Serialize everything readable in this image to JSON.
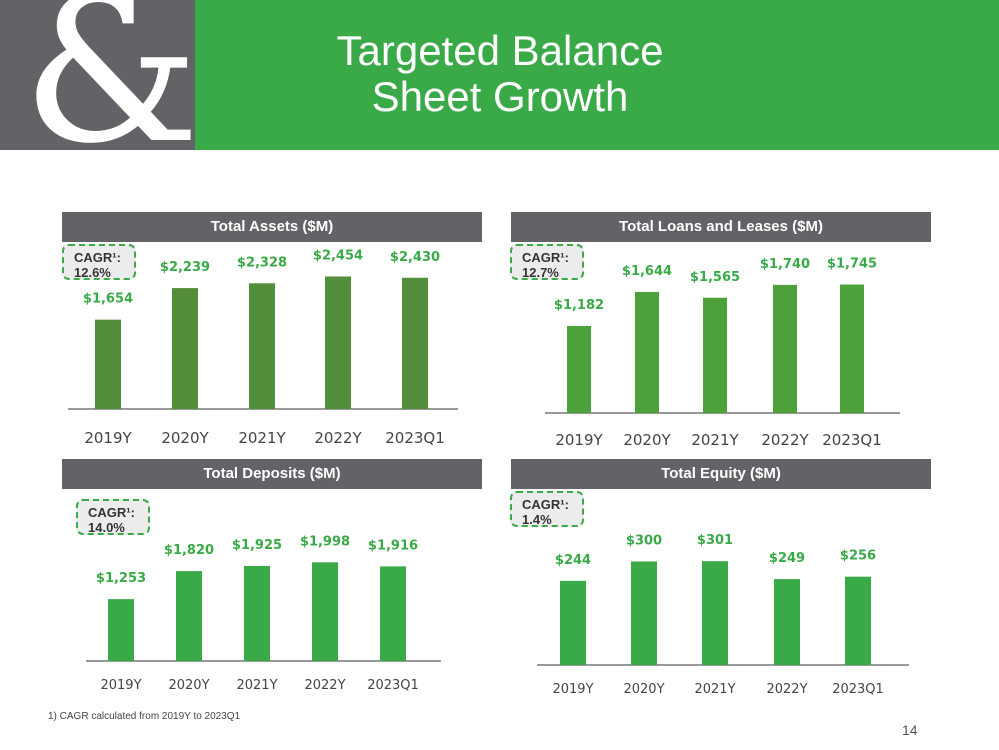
{
  "title_lines": [
    "Targeted Balance",
    "Sheet Growth"
  ],
  "logo_glyph": "&",
  "colors": {
    "header_green": "#3aaa48",
    "header_gray": "#626366",
    "assets_bar": "#538e3c",
    "loans_bar": "#4ca13a",
    "bright_bar": "#3aaa48",
    "label_green": "#3aaa48"
  },
  "chart_data": [
    {
      "type": "bar",
      "title": "Total Assets ($M)",
      "cagr_label": "CAGR¹:",
      "cagr_value": "12.6%",
      "categories": [
        "2019Y",
        "2020Y",
        "2021Y",
        "2022Y",
        "2023Q1"
      ],
      "values": [
        1654,
        2239,
        2328,
        2454,
        2430
      ],
      "value_labels": [
        "$1,654",
        "$2,239",
        "$2,328",
        "$2,454",
        "$2,430"
      ],
      "ylim": [
        0,
        3000
      ],
      "grid": false,
      "legend": "none"
    },
    {
      "type": "bar",
      "title": "Total Loans and Leases ($M)",
      "cagr_label": "CAGR¹:",
      "cagr_value": "12.7%",
      "categories": [
        "2019Y",
        "2020Y",
        "2021Y",
        "2022Y",
        "2023Q1"
      ],
      "values": [
        1182,
        1644,
        1565,
        1740,
        1745
      ],
      "value_labels": [
        "$1,182",
        "$1,644",
        "$1,565",
        "$1,740",
        "$1,745"
      ],
      "ylim": [
        0,
        2200
      ],
      "grid": false,
      "legend": "none"
    },
    {
      "type": "bar",
      "title": "Total Deposits ($M)",
      "cagr_label": "CAGR¹:",
      "cagr_value": "14.0%",
      "categories": [
        "2019Y",
        "2020Y",
        "2021Y",
        "2022Y",
        "2023Q1"
      ],
      "values": [
        1253,
        1820,
        1925,
        1998,
        1916
      ],
      "value_labels": [
        "$1,253",
        "$1,820",
        "$1,925",
        "$1,998",
        "$1,916"
      ],
      "ylim": [
        0,
        2450
      ],
      "grid": false,
      "legend": "none"
    },
    {
      "type": "bar",
      "title": "Total Equity ($M)",
      "cagr_label": "CAGR¹:",
      "cagr_value": "1.4%",
      "categories": [
        "2019Y",
        "2020Y",
        "2021Y",
        "2022Y",
        "2023Q1"
      ],
      "values": [
        244,
        300,
        301,
        249,
        256
      ],
      "value_labels": [
        "$244",
        "$300",
        "$301",
        "$249",
        "$256"
      ],
      "ylim": [
        0,
        400
      ],
      "grid": false,
      "legend": "none"
    }
  ],
  "footnote": "1)    CAGR calculated from 2019Y to 2023Q1",
  "page_number": "14"
}
